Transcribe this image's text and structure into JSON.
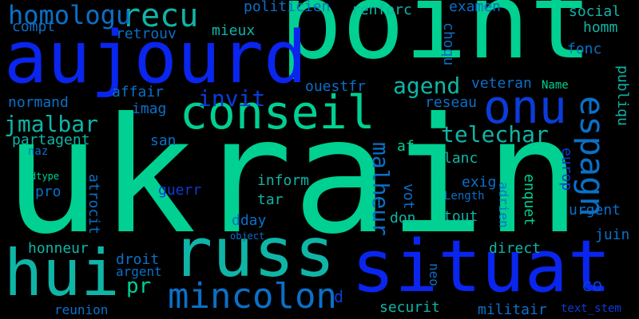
{
  "background": "#000000",
  "palette": {
    "green": "#00d091",
    "teal": "#0fb5a6",
    "steel": "#0a70c8",
    "blue": "#0a3cd8",
    "royal": "#0a25ee",
    "navy": "#1f2fa8"
  },
  "words": [
    {
      "text": "ukrain",
      "color": "green"
    },
    {
      "text": "point",
      "color": "green"
    },
    {
      "text": "aujourd",
      "color": "royal"
    },
    {
      "text": "situat",
      "color": "royal"
    },
    {
      "text": "russ",
      "color": "teal"
    },
    {
      "text": "hui",
      "color": "teal"
    },
    {
      "text": "conseil",
      "color": "green"
    },
    {
      "text": "onu",
      "color": "blue"
    },
    {
      "text": "espagn",
      "color": "steel"
    },
    {
      "text": "mincolon",
      "color": "steel"
    },
    {
      "text": "recu",
      "color": "teal"
    },
    {
      "text": "homologu",
      "color": "steel"
    },
    {
      "text": "jmalbar",
      "color": "teal"
    },
    {
      "text": "telechar",
      "color": "teal"
    },
    {
      "text": "invit",
      "color": "blue"
    },
    {
      "text": "agend",
      "color": "teal"
    },
    {
      "text": "malheur",
      "color": "steel"
    },
    {
      "text": "pr",
      "color": "green"
    },
    {
      "text": "politicien",
      "color": "steel"
    },
    {
      "text": "renforc",
      "color": "teal"
    },
    {
      "text": "examen",
      "color": "steel"
    },
    {
      "text": "social",
      "color": "teal"
    },
    {
      "text": "homm",
      "color": "teal"
    },
    {
      "text": "compt",
      "color": "steel"
    },
    {
      "text": "retrouv",
      "color": "steel"
    },
    {
      "text": "mieux",
      "color": "teal"
    },
    {
      "text": "choqu",
      "color": "steel"
    },
    {
      "text": "fonc",
      "color": "steel"
    },
    {
      "text": "publiqu",
      "color": "teal"
    },
    {
      "text": "affair",
      "color": "steel"
    },
    {
      "text": "ouestfr",
      "color": "steel"
    },
    {
      "text": "veteran",
      "color": "steel"
    },
    {
      "text": "Name",
      "color": "green"
    },
    {
      "text": "normand",
      "color": "steel"
    },
    {
      "text": "imag",
      "color": "steel"
    },
    {
      "text": "reseau",
      "color": "steel"
    },
    {
      "text": "partagent",
      "color": "teal"
    },
    {
      "text": "san",
      "color": "steel"
    },
    {
      "text": "naz",
      "color": "steel"
    },
    {
      "text": "af",
      "color": "green"
    },
    {
      "text": "lanc",
      "color": "teal"
    },
    {
      "text": "dtype",
      "color": "green"
    },
    {
      "text": "inform",
      "color": "teal"
    },
    {
      "text": "exig",
      "color": "steel"
    },
    {
      "text": "europ",
      "color": "blue"
    },
    {
      "text": "pro",
      "color": "steel"
    },
    {
      "text": "guerr",
      "color": "blue"
    },
    {
      "text": "atrocit",
      "color": "steel"
    },
    {
      "text": "tar",
      "color": "teal"
    },
    {
      "text": "vot",
      "color": "steel"
    },
    {
      "text": "enquet",
      "color": "green"
    },
    {
      "text": "adrien",
      "color": "steel"
    },
    {
      "text": "Length",
      "color": "steel"
    },
    {
      "text": "urgent",
      "color": "steel"
    },
    {
      "text": "dday",
      "color": "steel"
    },
    {
      "text": "don",
      "color": "teal"
    },
    {
      "text": "tout",
      "color": "teal"
    },
    {
      "text": "object",
      "color": "steel"
    },
    {
      "text": "juin",
      "color": "steel"
    },
    {
      "text": "honneur",
      "color": "teal"
    },
    {
      "text": "droit",
      "color": "steel"
    },
    {
      "text": "direct",
      "color": "teal"
    },
    {
      "text": "argent",
      "color": "steel"
    },
    {
      "text": "neo",
      "color": "steel"
    },
    {
      "text": "co",
      "color": "blue"
    },
    {
      "text": "d",
      "color": "blue"
    },
    {
      "text": "reunion",
      "color": "steel"
    },
    {
      "text": "securit",
      "color": "teal"
    },
    {
      "text": "militair",
      "color": "steel"
    },
    {
      "text": "text_stem",
      "color": "blue"
    }
  ]
}
